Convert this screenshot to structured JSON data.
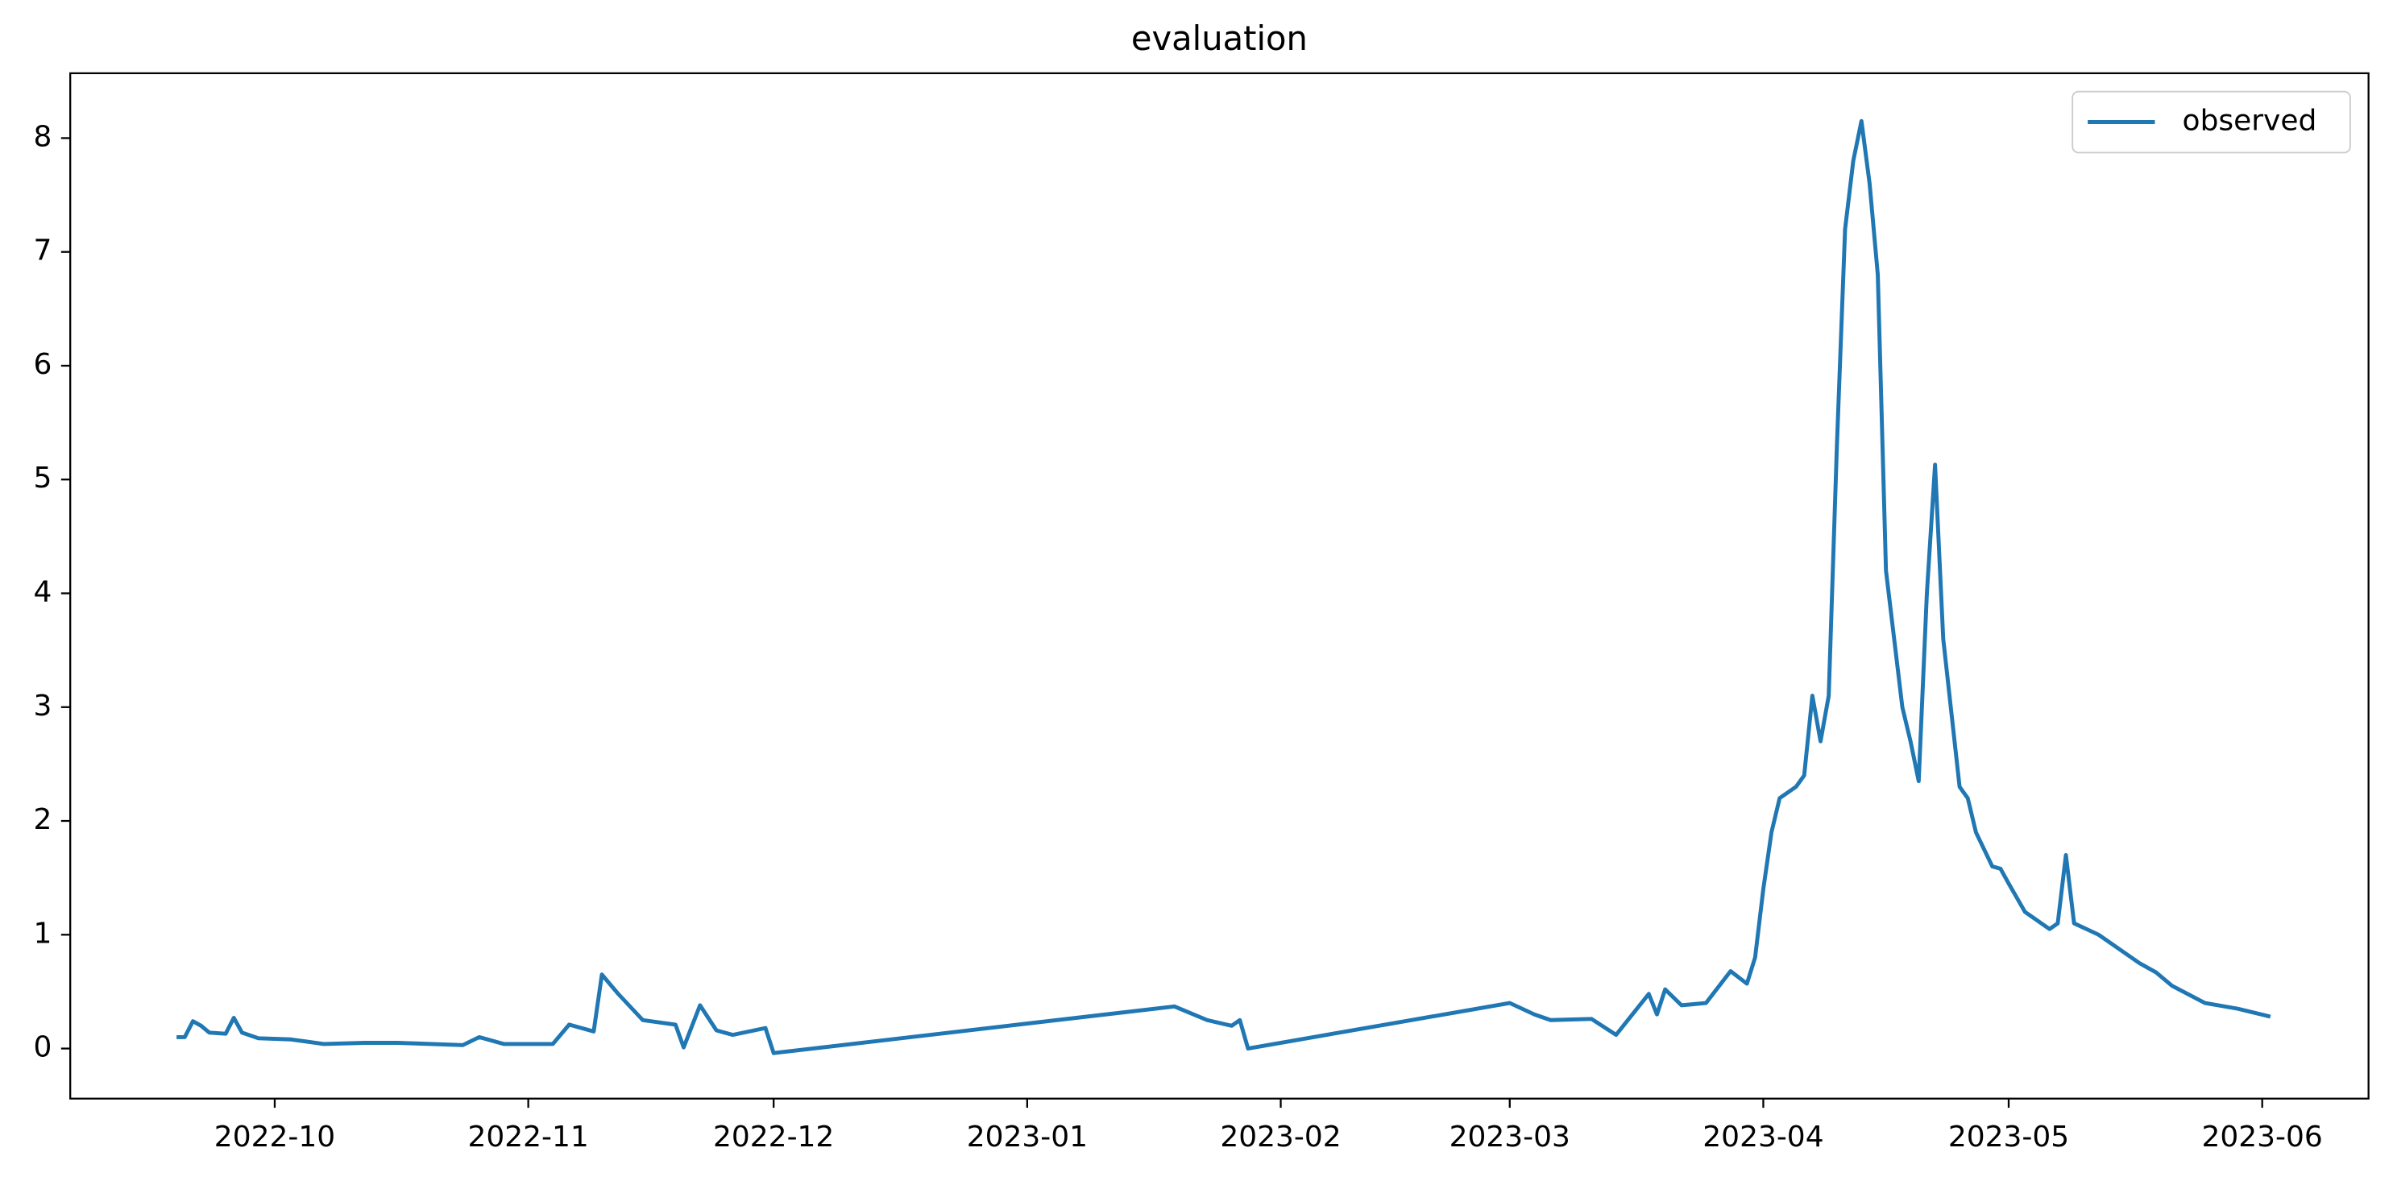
{
  "chart_data": {
    "type": "line",
    "title": "evaluation",
    "x": [
      "2022-09-19",
      "2022-09-20",
      "2022-09-21",
      "2022-09-22",
      "2022-09-23",
      "2022-09-25",
      "2022-09-26",
      "2022-09-27",
      "2022-09-29",
      "2022-10-03",
      "2022-10-07",
      "2022-10-12",
      "2022-10-16",
      "2022-10-24",
      "2022-10-26",
      "2022-10-29",
      "2022-11-04",
      "2022-11-06",
      "2022-11-09",
      "2022-11-10",
      "2022-11-12",
      "2022-11-15",
      "2022-11-19",
      "2022-11-20",
      "2022-11-22",
      "2022-11-24",
      "2022-11-26",
      "2022-11-30",
      "2022-12-01",
      "2023-01-19",
      "2023-01-23",
      "2023-01-26",
      "2023-01-27",
      "2023-01-28",
      "2023-03-01",
      "2023-03-04",
      "2023-03-06",
      "2023-03-11",
      "2023-03-14",
      "2023-03-18",
      "2023-03-19",
      "2023-03-20",
      "2023-03-22",
      "2023-03-25",
      "2023-03-28",
      "2023-03-30",
      "2023-03-31",
      "2023-04-01",
      "2023-04-02",
      "2023-04-03",
      "2023-04-05",
      "2023-04-06",
      "2023-04-07",
      "2023-04-08",
      "2023-04-09",
      "2023-04-10",
      "2023-04-11",
      "2023-04-12",
      "2023-04-13",
      "2023-04-14",
      "2023-04-15",
      "2023-04-16",
      "2023-04-17",
      "2023-04-18",
      "2023-04-19",
      "2023-04-20",
      "2023-04-21",
      "2023-04-22",
      "2023-04-23",
      "2023-04-25",
      "2023-04-26",
      "2023-04-27",
      "2023-04-29",
      "2023-04-30",
      "2023-05-01",
      "2023-05-03",
      "2023-05-06",
      "2023-05-07",
      "2023-05-08",
      "2023-05-09",
      "2023-05-12",
      "2023-05-15",
      "2023-05-17",
      "2023-05-19",
      "2023-05-21",
      "2023-05-25",
      "2023-05-29",
      "2023-06-02"
    ],
    "series": [
      {
        "name": "observed",
        "color": "#1f77b4",
        "values": [
          0.1,
          0.1,
          0.24,
          0.2,
          0.14,
          0.13,
          0.27,
          0.14,
          0.09,
          0.08,
          0.04,
          0.05,
          0.05,
          0.03,
          0.1,
          0.04,
          0.04,
          0.21,
          0.15,
          0.65,
          0.48,
          0.25,
          0.21,
          0.01,
          0.38,
          0.16,
          0.12,
          0.18,
          -0.04,
          0.37,
          0.25,
          0.2,
          0.25,
          0.0,
          0.4,
          0.3,
          0.25,
          0.26,
          0.12,
          0.48,
          0.3,
          0.52,
          0.38,
          0.4,
          0.68,
          0.57,
          0.8,
          1.4,
          1.9,
          2.2,
          2.3,
          2.4,
          3.1,
          2.7,
          3.1,
          5.3,
          7.2,
          7.8,
          8.15,
          7.6,
          6.8,
          4.2,
          3.6,
          3.0,
          2.7,
          2.35,
          4.0,
          5.13,
          3.6,
          2.3,
          2.2,
          1.9,
          1.6,
          1.58,
          1.45,
          1.2,
          1.05,
          1.1,
          1.7,
          1.1,
          1.0,
          0.85,
          0.75,
          0.67,
          0.55,
          0.4,
          0.35,
          0.28
        ]
      }
    ],
    "xlim": [
      "2022-09-06",
      "2023-06-14"
    ],
    "xticks": [
      {
        "value": "2022-10-01",
        "label": "2022-10"
      },
      {
        "value": "2022-11-01",
        "label": "2022-11"
      },
      {
        "value": "2022-12-01",
        "label": "2022-12"
      },
      {
        "value": "2023-01-01",
        "label": "2023-01"
      },
      {
        "value": "2023-02-01",
        "label": "2023-02"
      },
      {
        "value": "2023-03-01",
        "label": "2023-03"
      },
      {
        "value": "2023-04-01",
        "label": "2023-04"
      },
      {
        "value": "2023-05-01",
        "label": "2023-05"
      },
      {
        "value": "2023-06-01",
        "label": "2023-06"
      }
    ],
    "ylim": [
      -0.44,
      8.57
    ],
    "yticks": [
      0,
      1,
      2,
      3,
      4,
      5,
      6,
      7,
      8
    ],
    "legend": "upper right"
  }
}
